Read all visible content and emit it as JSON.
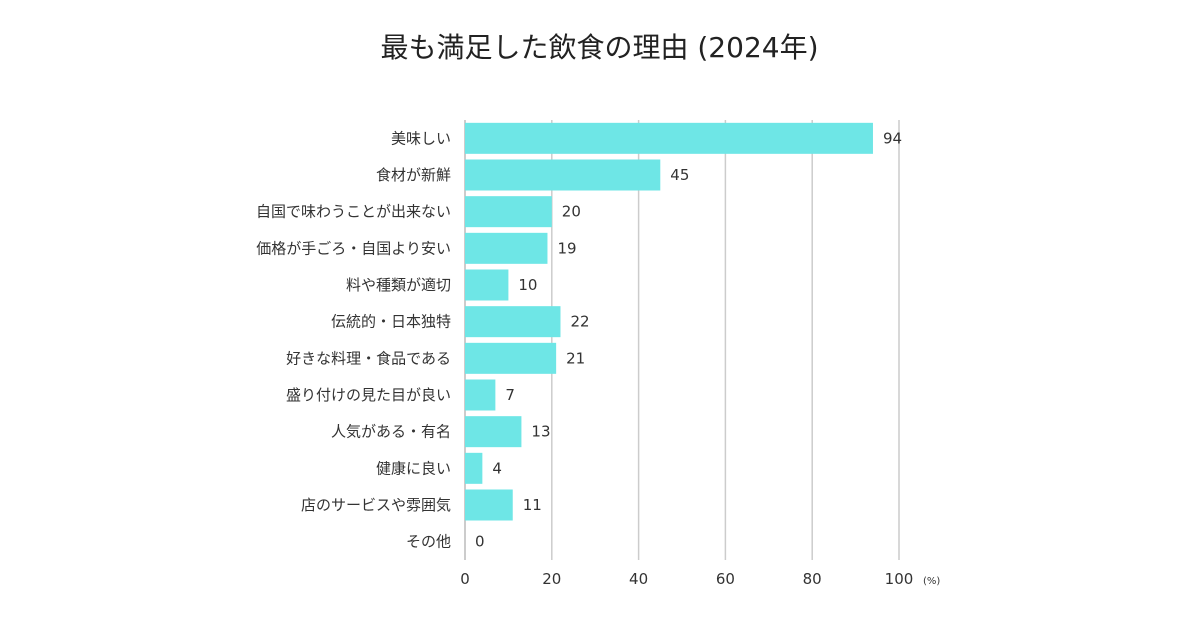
{
  "chart_data": {
    "type": "bar",
    "orientation": "horizontal",
    "title": "最も満足した飲食の理由 (2024年)",
    "categories": [
      "美味しい",
      "食材が新鮮",
      "自国で味わうことが出来ない",
      "価格が手ごろ・自国より安い",
      "料や種類が適切",
      "伝統的・日本独特",
      "好きな料理・食品である",
      "盛り付けの見た目が良い",
      "人気がある・有名",
      "健康に良い",
      "店のサービスや雰囲気",
      "その他"
    ],
    "values": [
      94,
      45,
      20,
      19,
      10,
      22,
      21,
      7,
      13,
      4,
      11,
      0
    ],
    "value_labels": [
      "94",
      "45",
      "20",
      "19",
      "10",
      "22",
      "21",
      "7",
      "13",
      "4",
      "11",
      "0"
    ],
    "xlim": [
      0,
      100
    ],
    "xticks": [
      "0",
      "20",
      "40",
      "60",
      "80",
      "100"
    ],
    "x_unit": "(%)",
    "grid": true,
    "bar_color": "#6ee6e6",
    "grid_color": "#cccccc"
  }
}
